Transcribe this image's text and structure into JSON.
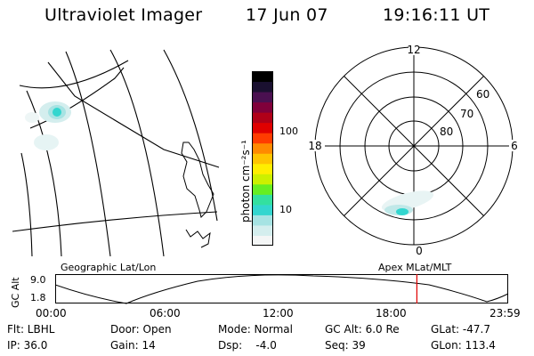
{
  "header": {
    "instrument": "Ultraviolet Imager",
    "date": "17 Jun 07",
    "time": "19:16:11 UT"
  },
  "colorbar": {
    "unit_label": "photon cm⁻²s⁻¹",
    "ticks": [
      "100",
      "10"
    ],
    "colors": [
      "#f4f6f6",
      "#d4eeee",
      "#a6e3e3",
      "#33d6cf",
      "#33e0a0",
      "#66ee22",
      "#ccf000",
      "#ffee00",
      "#ffc400",
      "#ff8a00",
      "#ff3c00",
      "#e00000",
      "#b00018",
      "#80003a",
      "#4a1050",
      "#1a1030",
      "#000000"
    ]
  },
  "geo_map": {
    "label": "Geographic Lat/Lon"
  },
  "polar_plot": {
    "label": "Apex  MLat/MLT",
    "mlt_labels": {
      "top": "12",
      "left": "18",
      "right": "6",
      "bottom": "0"
    },
    "lat_labels": [
      "60",
      "70",
      "80"
    ]
  },
  "altitude_plot": {
    "ylabel": "GC Alt",
    "ymax": "9.0",
    "ymin": "1.8",
    "time_ticks": [
      "00:00",
      "06:00",
      "12:00",
      "18:00",
      "23:59"
    ],
    "current_time_fraction": 0.8
  },
  "info": {
    "filter": "Flt: LBHL",
    "door": "Door: Open",
    "mode": "Mode: Normal",
    "gc_alt": "GC Alt: 6.0 Re",
    "glat": "GLat: -47.7",
    "ip": "IP: 36.0",
    "gain": "Gain: 14",
    "dsp": "Dsp:    -4.0",
    "seq": "Seq: 39",
    "glon": "GLon: 113.4"
  }
}
